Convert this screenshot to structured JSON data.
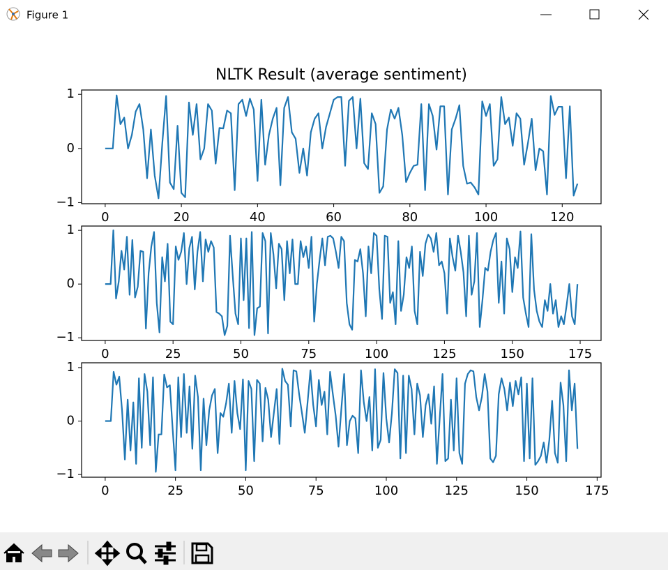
{
  "window": {
    "title": "Figure 1"
  },
  "chart_data": [
    {
      "type": "line",
      "title": "NLTK Result (average sentiment)",
      "series": [
        {
          "color": "#1f77b4",
          "values": [
            0,
            0,
            0,
            0.98,
            0.45,
            0.57,
            0,
            0.25,
            0.68,
            0.82,
            0.35,
            -0.55,
            0.35,
            -0.5,
            -0.92,
            0.1,
            0.97,
            -0.63,
            -0.75,
            0.42,
            -0.82,
            -0.9,
            0.85,
            0.25,
            0.82,
            -0.2,
            0,
            0.82,
            0.7,
            -0.28,
            0.38,
            0.37,
            0.7,
            0.65,
            -0.77,
            0.82,
            0.9,
            0.6,
            0.92,
            0.72,
            -0.6,
            0.9,
            -0.3,
            0.25,
            0.55,
            0.75,
            -0.68,
            0.75,
            0.95,
            0.3,
            0.18,
            -0.45,
            0,
            -0.5,
            0.3,
            0.55,
            0.65,
            0,
            0.4,
            0.65,
            0.9,
            0.95,
            0.95,
            -0.32,
            0.88,
            0.95,
            0,
            0.92,
            -0.27,
            -0.38,
            0.65,
            0.45,
            -0.82,
            -0.7,
            0.35,
            0.72,
            0.55,
            0.75,
            0.25,
            -0.62,
            -0.45,
            -0.32,
            -0.3,
            0.82,
            -0.77,
            0.82,
            0.6,
            -0.02,
            0.78,
            0.78,
            -0.85,
            0.35,
            0.55,
            0.8,
            -0.32,
            -0.65,
            -0.63,
            -0.72,
            -0.85,
            0.87,
            0.6,
            0.82,
            -0.32,
            -0.2,
            0.95,
            0.45,
            0.57,
            0.05,
            0.65,
            0.55,
            -0.3,
            0.1,
            0.55,
            -0.4,
            0,
            -0.05,
            -0.85,
            0.97,
            0.62,
            0.77,
            0.77,
            -0.55,
            0.78,
            -0.87,
            -0.65
          ]
        }
      ],
      "xlim": [
        -6.2,
        130.2
      ],
      "xticks": [
        0,
        20,
        40,
        60,
        80,
        100,
        120
      ],
      "ylim": [
        -1.02,
        1.08
      ],
      "yticks": [
        {
          "value": -1,
          "label": "−1"
        },
        0,
        1
      ]
    },
    {
      "type": "line",
      "series": [
        {
          "color": "#1f77b4",
          "values": [
            0,
            0,
            0,
            1.0,
            -0.27,
            0.05,
            0.62,
            0.27,
            0.88,
            -0.2,
            0.82,
            -0.25,
            -0.05,
            0.62,
            0.6,
            -0.83,
            0.2,
            0.7,
            0.97,
            -0.35,
            -0.9,
            0.5,
            0.05,
            0.75,
            -0.7,
            -0.75,
            0.7,
            0.45,
            0.6,
            0.95,
            0,
            0.67,
            0.88,
            -0.1,
            0.6,
            0.97,
            0.05,
            0.83,
            0.6,
            0.8,
            0.68,
            -0.52,
            -0.55,
            -0.6,
            -0.95,
            -0.78,
            0.9,
            0.15,
            -0.55,
            -0.75,
            0.85,
            -0.3,
            0.85,
            -0.82,
            0.97,
            -0.95,
            -0.45,
            -0.42,
            0.95,
            0.8,
            -0.92,
            0.95,
            0.55,
            -0.08,
            0.75,
            0.65,
            -0.3,
            0.8,
            0.2,
            0.83,
            0,
            0,
            0.8,
            0.5,
            0.7,
            0.3,
            0.88,
            -0.7,
            0,
            0.45,
            0.85,
            0.35,
            0.88,
            0.9,
            0.85,
            0.6,
            0.3,
            0.88,
            0.8,
            -0.35,
            -0.75,
            -0.85,
            0.45,
            0.42,
            0.65,
            0.2,
            -0.6,
            0.7,
            0.2,
            0.95,
            0.9,
            -0.1,
            -0.65,
            0.9,
            0.88,
            -0.35,
            -0.15,
            -0.75,
            0.8,
            -0.5,
            -0.2,
            0.5,
            0.3,
            0.7,
            -0.5,
            -0.75,
            0.6,
            0.15,
            0.75,
            0.92,
            0.85,
            0.6,
            0.95,
            0.35,
            0.42,
            0.2,
            -0.55,
            0.85,
            0.5,
            0.25,
            0.9,
            0.6,
            0.22,
            -0.6,
            0.9,
            -0.2,
            0.05,
            0.95,
            -0.8,
            -0.3,
            0.3,
            0.25,
            0.6,
            0.82,
            0.95,
            -0.35,
            0.42,
            -0.55,
            0.85,
            0.65,
            -0.15,
            0.5,
            0.3,
            0.98,
            -0.25,
            -0.55,
            -0.8,
            0.93,
            -0.1,
            -0.5,
            -0.7,
            -0.8,
            -0.3,
            -0.5,
            0,
            -0.55,
            -0.3,
            -0.8,
            -0.6,
            -0.75,
            -0.4,
            0,
            -0.6,
            -0.75,
            0
          ]
        }
      ],
      "xlim": [
        -8.7,
        182.7
      ],
      "xticks": [
        0,
        25,
        50,
        75,
        100,
        125,
        150,
        175
      ],
      "ylim": [
        -1.05,
        1.08
      ],
      "yticks": [
        {
          "value": -1,
          "label": "−1"
        },
        0,
        1
      ]
    },
    {
      "type": "line",
      "series": [
        {
          "color": "#1f77b4",
          "values": [
            0,
            0,
            0,
            0.92,
            0.68,
            0.83,
            0.2,
            -0.72,
            0.4,
            -0.55,
            0.35,
            -0.8,
            0.8,
            -0.5,
            0.88,
            0.55,
            -0.45,
            0.82,
            -0.95,
            -0.25,
            -0.25,
            0.87,
            0.63,
            0.67,
            -0.15,
            -0.92,
            0.82,
            -0.3,
            0.88,
            -0.22,
            0.65,
            -0.52,
            0.85,
            0.45,
            -0.92,
            0.42,
            -0.45,
            0.2,
            0.48,
            0.6,
            -0.6,
            0.15,
            0.08,
            0.33,
            0.7,
            -0.22,
            0.75,
            0.15,
            -0.15,
            0.78,
            -0.92,
            0.75,
            0.6,
            -0.75,
            0.77,
            0.7,
            -0.38,
            0.62,
            0.4,
            -0.3,
            0.15,
            0.6,
            -0.43,
            0.98,
            0.75,
            0.68,
            -0.1,
            0.95,
            0.93,
            0.5,
            0.15,
            -0.22,
            0.35,
            0.95,
            0.3,
            -0.1,
            0.77,
            0.3,
            0.55,
            -0.25,
            0.92,
            0.5,
            0.1,
            -0.48,
            0.22,
            0.88,
            -0.45,
            0,
            0.1,
            0.05,
            -0.6,
            0.95,
            0.35,
            0,
            0.45,
            -0.55,
            0.97,
            -0.5,
            -0.35,
            0.9,
            0.05,
            -0.4,
            0.15,
            0.97,
            0.9,
            -0.7,
            0.85,
            -0.6,
            0.85,
            0.6,
            -0.25,
            0.7,
            0.48,
            -0.3,
            0.3,
            0.5,
            -0.05,
            0.65,
            -0.8,
            0.05,
            0.88,
            -0.75,
            -0.7,
            0.4,
            -0.55,
            0.8,
            -0.6,
            -0.8,
            0.7,
            0.88,
            0.95,
            0.93,
            0.45,
            0.2,
            0.45,
            0.88,
            0.55,
            -0.7,
            -0.77,
            -0.65,
            0.5,
            0.8,
            0.6,
            0.2,
            0.72,
            0.28,
            0.75,
            0.5,
            0.82,
            -0.75,
            0.7,
            -0.7,
            0.8,
            -0.82,
            -0.75,
            -0.65,
            -0.4,
            -0.78,
            -0.35,
            0.38,
            -0.6,
            -0.78,
            0.72,
            0.3,
            -0.75,
            0.95,
            0.2,
            0.7,
            -0.52
          ]
        }
      ],
      "xlim": [
        -8.4,
        176.4
      ],
      "xticks": [
        0,
        25,
        50,
        75,
        100,
        125,
        150,
        175
      ],
      "ylim": [
        -1.05,
        1.09
      ],
      "yticks": [
        {
          "value": -1,
          "label": "−1"
        },
        0,
        1
      ]
    }
  ]
}
